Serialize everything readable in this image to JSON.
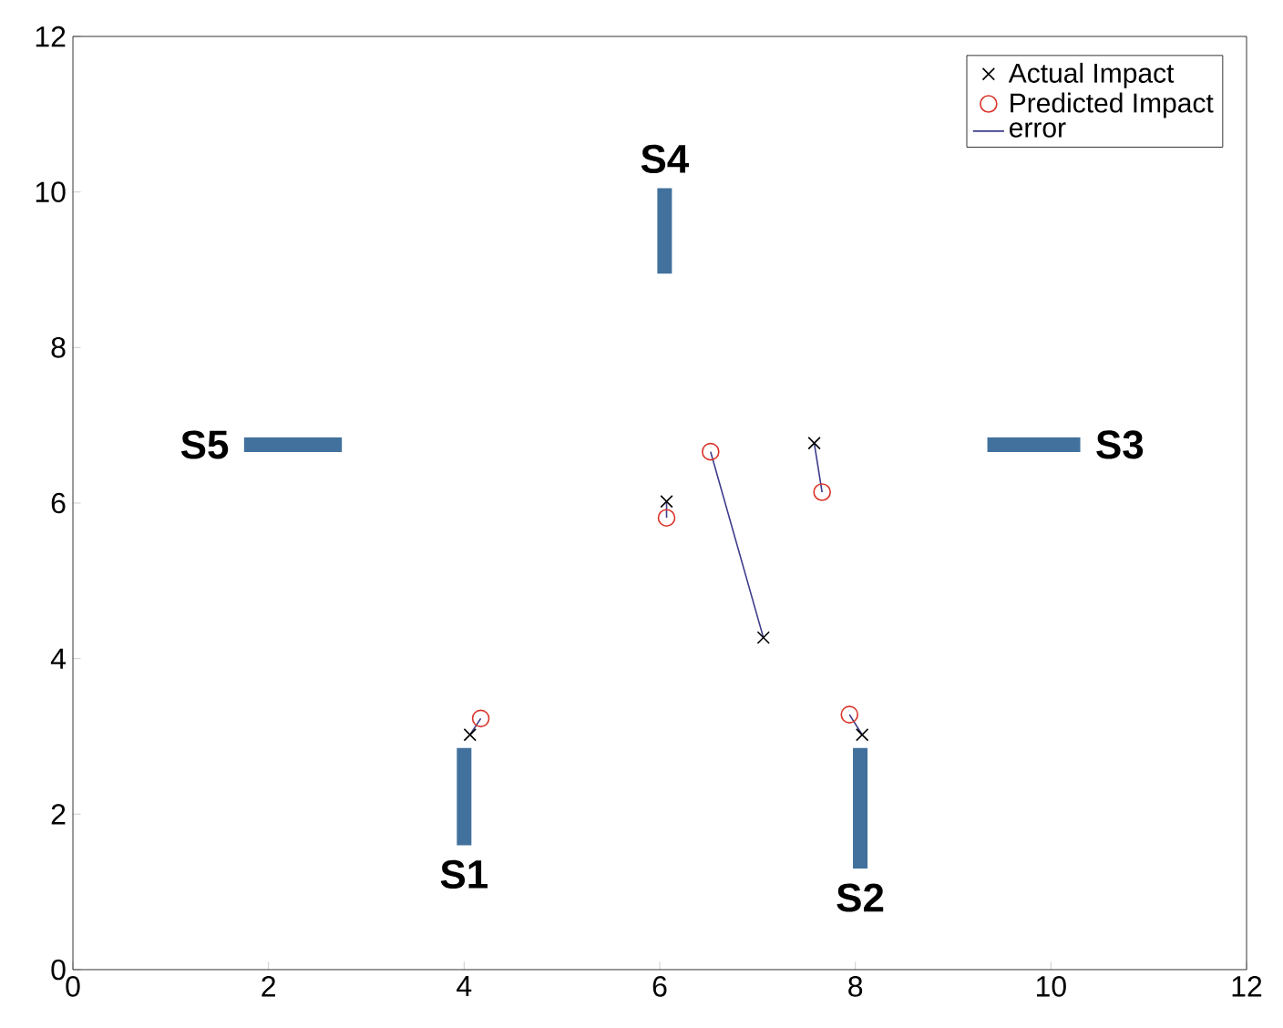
{
  "chart_data": {
    "type": "scatter",
    "xlim": [
      0,
      12
    ],
    "ylim": [
      0,
      12
    ],
    "xticks": [
      0,
      2,
      4,
      6,
      8,
      10,
      12
    ],
    "yticks": [
      0,
      2,
      4,
      6,
      8,
      10,
      12
    ],
    "grid": false,
    "legend": "top right",
    "series": [
      {
        "type": "line",
        "color": "#41719c",
        "x": [
          4.0,
          4.0
        ],
        "values": [
          1.6,
          2.85
        ]
      },
      {
        "type": "line",
        "color": "#41719c",
        "x": [
          8.05,
          8.05
        ],
        "values": [
          1.3,
          2.85
        ]
      },
      {
        "type": "line",
        "color": "#41719c",
        "x": [
          10.3,
          9.35
        ],
        "values": [
          6.75,
          6.75
        ]
      },
      {
        "type": "line",
        "color": "#41719c",
        "x": [
          6.05,
          6.05
        ],
        "values": [
          10.05,
          8.95
        ]
      },
      {
        "type": "line",
        "color": "#41719c",
        "x": [
          1.75,
          2.75
        ],
        "values": [
          6.75,
          6.75
        ]
      },
      {
        "name": "Actual Impact",
        "color": "#000000",
        "marker": "cross",
        "x": [
          4.06,
          6.07,
          7.06,
          7.58,
          8.07
        ],
        "values": [
          3.02,
          6.02,
          4.27,
          6.77,
          3.02
        ]
      },
      {
        "name": "Predicted Impact",
        "color": "#d9342b",
        "marker": "circle",
        "x": [
          4.17,
          6.07,
          6.52,
          7.66,
          7.94
        ],
        "values": [
          3.23,
          5.81,
          6.66,
          6.14,
          3.28
        ]
      },
      {
        "type": "line",
        "name": "error",
        "color": "#3c3c8c",
        "marker": "none",
        "x": [
          4.06,
          4.17,
          null,
          6.07,
          6.07,
          null,
          7.06,
          6.52,
          null,
          7.58,
          7.66,
          null,
          8.07,
          7.94
        ],
        "values": [
          3.02,
          3.23,
          null,
          6.02,
          5.81,
          null,
          4.27,
          6.66,
          null,
          6.77,
          6.14,
          null,
          3.02,
          3.28
        ]
      }
    ],
    "annotations": [
      "S1",
      "S2",
      "S3",
      "S4",
      "S5"
    ]
  }
}
